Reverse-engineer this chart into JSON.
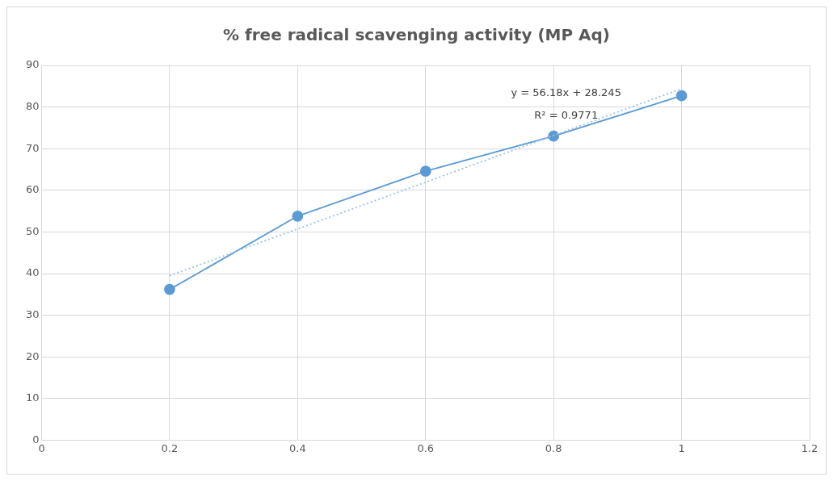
{
  "chart_data": {
    "type": "line",
    "title": "% free radical scavenging activity (MP Aq)",
    "x": [
      0.2,
      0.4,
      0.6,
      0.8,
      1
    ],
    "series": [
      {
        "type": "line",
        "color": "#5b9bd5",
        "marker": "circle",
        "line_style": "solid",
        "values": [
          36.2,
          53.8,
          64.6,
          73,
          82.7
        ]
      },
      {
        "type": "line",
        "color": "#9dc3e6",
        "marker": "none",
        "line_style": "dotted",
        "x": [
          0.2,
          1
        ],
        "values": [
          39.5,
          84.4
        ]
      }
    ],
    "xlim": [
      0,
      1.2
    ],
    "xticks": [
      0,
      0.2,
      0.4,
      0.6,
      0.8,
      1,
      1.2
    ],
    "ylim": [
      0,
      90
    ],
    "yticks": [
      0,
      10,
      20,
      30,
      40,
      50,
      60,
      70,
      80,
      90
    ],
    "grid": true,
    "legend": false,
    "annotations": [
      "y = 56.18x + 28.245",
      "R² = 0.9771"
    ]
  }
}
